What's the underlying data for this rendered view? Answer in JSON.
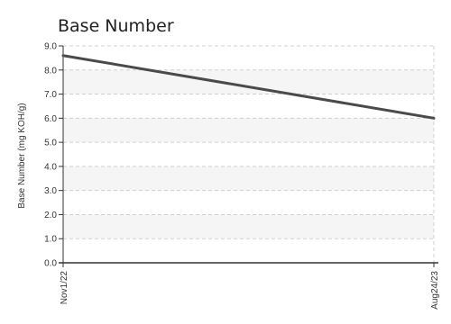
{
  "chart_data": {
    "type": "line",
    "title": "Base Number",
    "xlabel": "",
    "ylabel": "Base Number (mg KOH/g)",
    "x": [
      "Nov1/22",
      "Aug24/23"
    ],
    "series": [
      {
        "values": [
          8.6,
          6.0
        ]
      }
    ],
    "ylim": [
      0,
      9
    ],
    "yticks": [
      "0.0",
      "1.0",
      "2.0",
      "3.0",
      "4.0",
      "5.0",
      "6.0",
      "7.0",
      "8.0",
      "9.0"
    ],
    "grid": true,
    "colors": {
      "line": "#4a4a4a",
      "grid": "#d0d0d0",
      "band": "#f5f5f5",
      "axis": "#333333"
    }
  }
}
